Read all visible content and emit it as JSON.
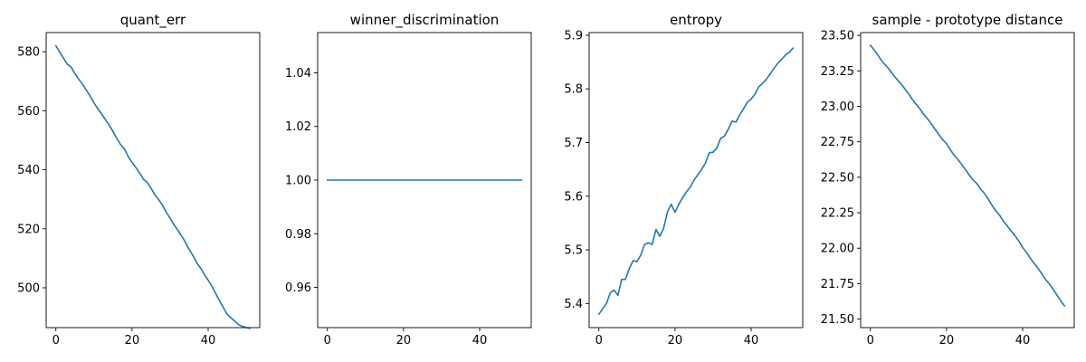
{
  "chart_data": [
    {
      "type": "line",
      "title": "quant_err",
      "xlabel": "",
      "ylabel": "",
      "xlim": [
        -2.55,
        53.55
      ],
      "ylim": [
        486.5,
        586.5
      ],
      "xticks": [
        0,
        20,
        40
      ],
      "xtick_labels": [
        "0",
        "20",
        "40"
      ],
      "yticks": [
        500,
        520,
        540,
        560,
        580
      ],
      "ytick_labels": [
        "500",
        "520",
        "540",
        "560",
        "580"
      ],
      "grid": false,
      "legend": "none",
      "color": "#1f77b4",
      "series": [
        {
          "x": [
            0,
            1,
            2,
            3,
            4,
            5,
            6,
            7,
            8,
            9,
            10,
            11,
            12,
            13,
            14,
            15,
            16,
            17,
            18,
            19,
            20,
            21,
            22,
            23,
            24,
            25,
            26,
            27,
            28,
            29,
            30,
            31,
            32,
            33,
            34,
            35,
            36,
            37,
            38,
            39,
            40,
            41,
            42,
            43,
            44,
            45,
            46,
            47,
            48,
            49,
            50,
            51
          ],
          "y": [
            582.0,
            580.0,
            577.8,
            575.8,
            574.8,
            572.6,
            570.7,
            569.0,
            567.0,
            565.0,
            562.7,
            560.7,
            559.0,
            557.0,
            555.2,
            553.0,
            550.7,
            548.5,
            547.1,
            544.5,
            542.5,
            540.8,
            538.9,
            536.8,
            535.7,
            533.8,
            531.5,
            529.9,
            528.0,
            525.6,
            523.6,
            521.4,
            519.6,
            517.6,
            515.5,
            513.0,
            511.0,
            508.5,
            506.7,
            504.5,
            502.6,
            500.5,
            498.0,
            495.6,
            493.3,
            491.0,
            489.8,
            488.7,
            487.5,
            486.9,
            486.5,
            486.3
          ]
        }
      ]
    },
    {
      "type": "line",
      "title": "winner_discrimination",
      "xlabel": "",
      "ylabel": "",
      "xlim": [
        -2.55,
        53.55
      ],
      "ylim": [
        0.945,
        1.055
      ],
      "xticks": [
        0,
        20,
        40
      ],
      "xtick_labels": [
        "0",
        "20",
        "40"
      ],
      "yticks": [
        0.96,
        0.98,
        1.0,
        1.02,
        1.04
      ],
      "ytick_labels": [
        "0.96",
        "0.98",
        "1.00",
        "1.02",
        "1.04"
      ],
      "grid": false,
      "legend": "none",
      "color": "#1f77b4",
      "series": [
        {
          "x": [
            0,
            51
          ],
          "y": [
            1.0,
            1.0
          ]
        }
      ]
    },
    {
      "type": "line",
      "title": "entropy",
      "xlabel": "",
      "ylabel": "",
      "xlim": [
        -2.55,
        53.55
      ],
      "ylim": [
        5.355,
        5.905
      ],
      "xticks": [
        0,
        20,
        40
      ],
      "xtick_labels": [
        "0",
        "20",
        "40"
      ],
      "yticks": [
        5.4,
        5.5,
        5.6,
        5.7,
        5.8,
        5.9
      ],
      "ytick_labels": [
        "5.4",
        "5.5",
        "5.6",
        "5.7",
        "5.8",
        "5.9"
      ],
      "grid": false,
      "legend": "none",
      "color": "#1f77b4",
      "series": [
        {
          "x": [
            0,
            1,
            2,
            3,
            4,
            5,
            6,
            7,
            8,
            9,
            10,
            11,
            12,
            13,
            14,
            15,
            16,
            17,
            18,
            19,
            20,
            21,
            22,
            23,
            24,
            25,
            26,
            27,
            28,
            29,
            30,
            31,
            32,
            33,
            34,
            35,
            36,
            37,
            38,
            39,
            40,
            41,
            42,
            43,
            44,
            45,
            46,
            47,
            48,
            49,
            50,
            51
          ],
          "y": [
            5.38,
            5.39,
            5.4,
            5.42,
            5.425,
            5.415,
            5.445,
            5.445,
            5.465,
            5.48,
            5.478,
            5.49,
            5.51,
            5.513,
            5.51,
            5.538,
            5.525,
            5.54,
            5.57,
            5.585,
            5.57,
            5.585,
            5.597,
            5.608,
            5.617,
            5.63,
            5.64,
            5.65,
            5.662,
            5.681,
            5.682,
            5.69,
            5.708,
            5.712,
            5.725,
            5.74,
            5.738,
            5.752,
            5.763,
            5.775,
            5.781,
            5.79,
            5.804,
            5.81,
            5.818,
            5.828,
            5.838,
            5.848,
            5.855,
            5.863,
            5.868,
            5.876
          ]
        }
      ]
    },
    {
      "type": "line",
      "title": "sample - prototype distance",
      "xlabel": "",
      "ylabel": "",
      "xlim": [
        -2.55,
        53.55
      ],
      "ylim": [
        21.44,
        23.52
      ],
      "xticks": [
        0,
        20,
        40
      ],
      "xtick_labels": [
        "0",
        "20",
        "40"
      ],
      "yticks": [
        21.5,
        21.75,
        22.0,
        22.25,
        22.5,
        22.75,
        23.0,
        23.25,
        23.5
      ],
      "ytick_labels": [
        "21.50",
        "21.75",
        "22.00",
        "22.25",
        "22.50",
        "22.75",
        "23.00",
        "23.25",
        "23.50"
      ],
      "grid": false,
      "legend": "none",
      "color": "#1f77b4",
      "series": [
        {
          "x": [
            0,
            1,
            2,
            3,
            4,
            5,
            6,
            7,
            8,
            9,
            10,
            11,
            12,
            13,
            14,
            15,
            16,
            17,
            18,
            19,
            20,
            21,
            22,
            23,
            24,
            25,
            26,
            27,
            28,
            29,
            30,
            31,
            32,
            33,
            34,
            35,
            36,
            37,
            38,
            39,
            40,
            41,
            42,
            43,
            44,
            45,
            46,
            47,
            48,
            49,
            50,
            51
          ],
          "y": [
            23.43,
            23.398,
            23.36,
            23.32,
            23.29,
            23.26,
            23.222,
            23.19,
            23.16,
            23.125,
            23.09,
            23.05,
            23.015,
            22.983,
            22.945,
            22.912,
            22.878,
            22.838,
            22.8,
            22.765,
            22.737,
            22.695,
            22.655,
            22.625,
            22.59,
            22.552,
            22.515,
            22.48,
            22.455,
            22.415,
            22.385,
            22.345,
            22.3,
            22.262,
            22.23,
            22.188,
            22.155,
            22.12,
            22.088,
            22.05,
            22.005,
            21.97,
            21.93,
            21.893,
            21.86,
            21.82,
            21.78,
            21.748,
            21.712,
            21.67,
            21.63,
            21.593
          ]
        }
      ]
    }
  ]
}
